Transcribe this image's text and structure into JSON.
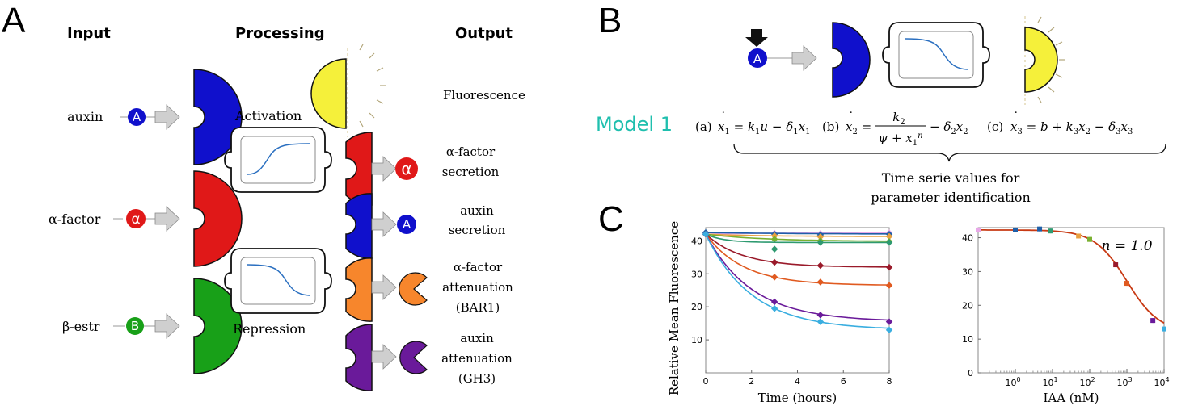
{
  "panel_a": {
    "letter": "A",
    "headers": {
      "input": "Input",
      "processing": "Processing",
      "output": "Output"
    },
    "inputs": [
      {
        "label": "auxin",
        "badge": "A",
        "color": "#1010cc"
      },
      {
        "label": "α-factor",
        "badge": "α",
        "color": "#e01818"
      },
      {
        "label": "β-estr",
        "badge": "B",
        "color": "#18a018"
      }
    ],
    "processing": {
      "activation": "Activation",
      "repression": "Repression"
    },
    "outputs": [
      {
        "line1": "Fluorescence",
        "line2": "",
        "line3": "",
        "color": "#f5f03a"
      },
      {
        "line1": "α-factor",
        "line2": "secretion",
        "line3": "",
        "color": "#e01818",
        "badge": "α"
      },
      {
        "line1": "auxin",
        "line2": "secretion",
        "line3": "",
        "color": "#1010cc",
        "badge": "A"
      },
      {
        "line1": "α-factor",
        "line2": "attenuation",
        "line3": "(BAR1)",
        "color": "#f7862c"
      },
      {
        "line1": "auxin",
        "line2": "attenuation",
        "line3": "(GH3)",
        "color": "#6a1a9a"
      }
    ]
  },
  "panel_b": {
    "letter": "B",
    "model_label": "Model 1",
    "eq_a_tag": "(a)",
    "eq_b_tag": "(b)",
    "eq_c_tag": "(c)",
    "brace_caption_line1": "Time serie values for",
    "brace_caption_line2": "parameter identification",
    "badge": "A"
  },
  "panel_c": {
    "letter": "C",
    "n_label": "n = 1.0"
  },
  "chart_data": [
    {
      "type": "line",
      "xlabel": "Time (hours)",
      "ylabel": "Relative Mean Fluorescence",
      "xlim": [
        0,
        8
      ],
      "ylim": [
        0,
        44
      ],
      "x_ticks": [
        0,
        2,
        4,
        6,
        8
      ],
      "y_ticks": [
        10,
        20,
        30,
        40
      ],
      "x": [
        0,
        3,
        5,
        8
      ],
      "series": [
        {
          "color": "#e8a8e8",
          "values": [
            42,
            42.3,
            42.2,
            42.4
          ]
        },
        {
          "color": "#1f5fa8",
          "values": [
            42.5,
            42,
            41.8,
            42
          ]
        },
        {
          "color": "#e8a040",
          "values": [
            42,
            41.5,
            41.2,
            41.3
          ]
        },
        {
          "color": "#7ab030",
          "values": [
            42,
            40.5,
            40,
            39.8
          ]
        },
        {
          "color": "#2e9a70",
          "values": [
            42,
            37.5,
            39.5,
            39.5
          ]
        },
        {
          "color": "#9a1a2a",
          "values": [
            42,
            33.5,
            32.5,
            32
          ]
        },
        {
          "color": "#e05a20",
          "values": [
            42,
            29,
            27.5,
            26.5
          ]
        },
        {
          "color": "#6a1a9a",
          "values": [
            42,
            21.5,
            17.5,
            15.5
          ]
        },
        {
          "color": "#3aaee0",
          "values": [
            42,
            19.5,
            15.5,
            13
          ]
        }
      ]
    },
    {
      "type": "scatter",
      "xlabel": "IAA (nM)",
      "ylabel": "",
      "xlim": [
        0.1,
        10000
      ],
      "x_scale": "log",
      "ylim": [
        0,
        43
      ],
      "x_ticks": [
        "10^0",
        "10^1",
        "10^2",
        "10^3",
        "10^4"
      ],
      "y_ticks": [
        0,
        10,
        20,
        30,
        40
      ],
      "points": [
        {
          "x": 0.1,
          "y": 42.3,
          "color": "#e8a8e8"
        },
        {
          "x": 1,
          "y": 42.3,
          "color": "#1f5fa8"
        },
        {
          "x": 4.5,
          "y": 42.6,
          "color": "#1f5fa8"
        },
        {
          "x": 9,
          "y": 42,
          "color": "#2e9a70"
        },
        {
          "x": 50,
          "y": 40.5,
          "color": "#e8a040"
        },
        {
          "x": 100,
          "y": 39.5,
          "color": "#7ab030"
        },
        {
          "x": 500,
          "y": 32,
          "color": "#9a1a2a"
        },
        {
          "x": 1000,
          "y": 26.5,
          "color": "#e05a20"
        },
        {
          "x": 5000,
          "y": 15.5,
          "color": "#6a1a9a"
        },
        {
          "x": 10000,
          "y": 13,
          "color": "#3aaee0"
        }
      ],
      "fit": {
        "color": "#c83a14",
        "ymax": 42.3,
        "ymin": 12,
        "ec50": 1000,
        "n": 1.0
      }
    }
  ]
}
